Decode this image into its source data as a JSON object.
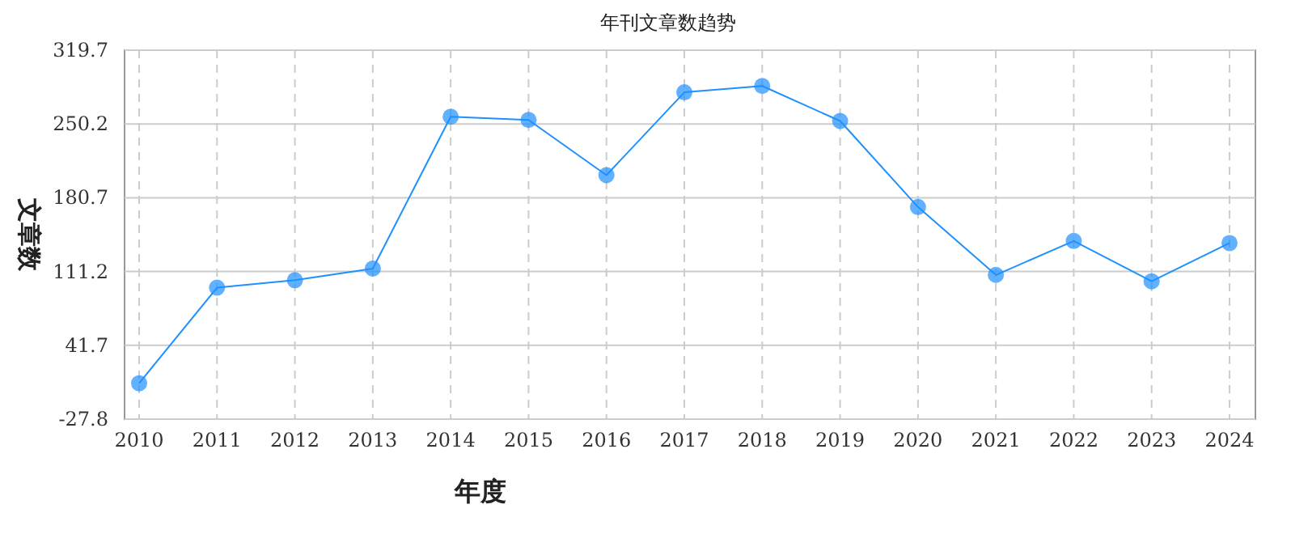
{
  "chart_data": {
    "type": "line",
    "title": "年刊文章数趋势",
    "xlabel": "年度",
    "ylabel": "文章数",
    "categories": [
      "2010",
      "2011",
      "2012",
      "2013",
      "2014",
      "2015",
      "2016",
      "2017",
      "2018",
      "2019",
      "2020",
      "2021",
      "2022",
      "2023",
      "2024"
    ],
    "series": [
      {
        "color": "#1e90ff",
        "values": [
          6,
          96,
          103,
          114,
          257,
          254,
          202,
          280,
          286,
          253,
          172,
          108,
          140,
          102,
          138
        ]
      }
    ],
    "ylim": [
      -27.8,
      319.7
    ],
    "yticks": [
      -27.8,
      41.7,
      111.2,
      180.7,
      250.2,
      319.7
    ],
    "grid": true,
    "marker": "circle",
    "line_style": "solid"
  }
}
